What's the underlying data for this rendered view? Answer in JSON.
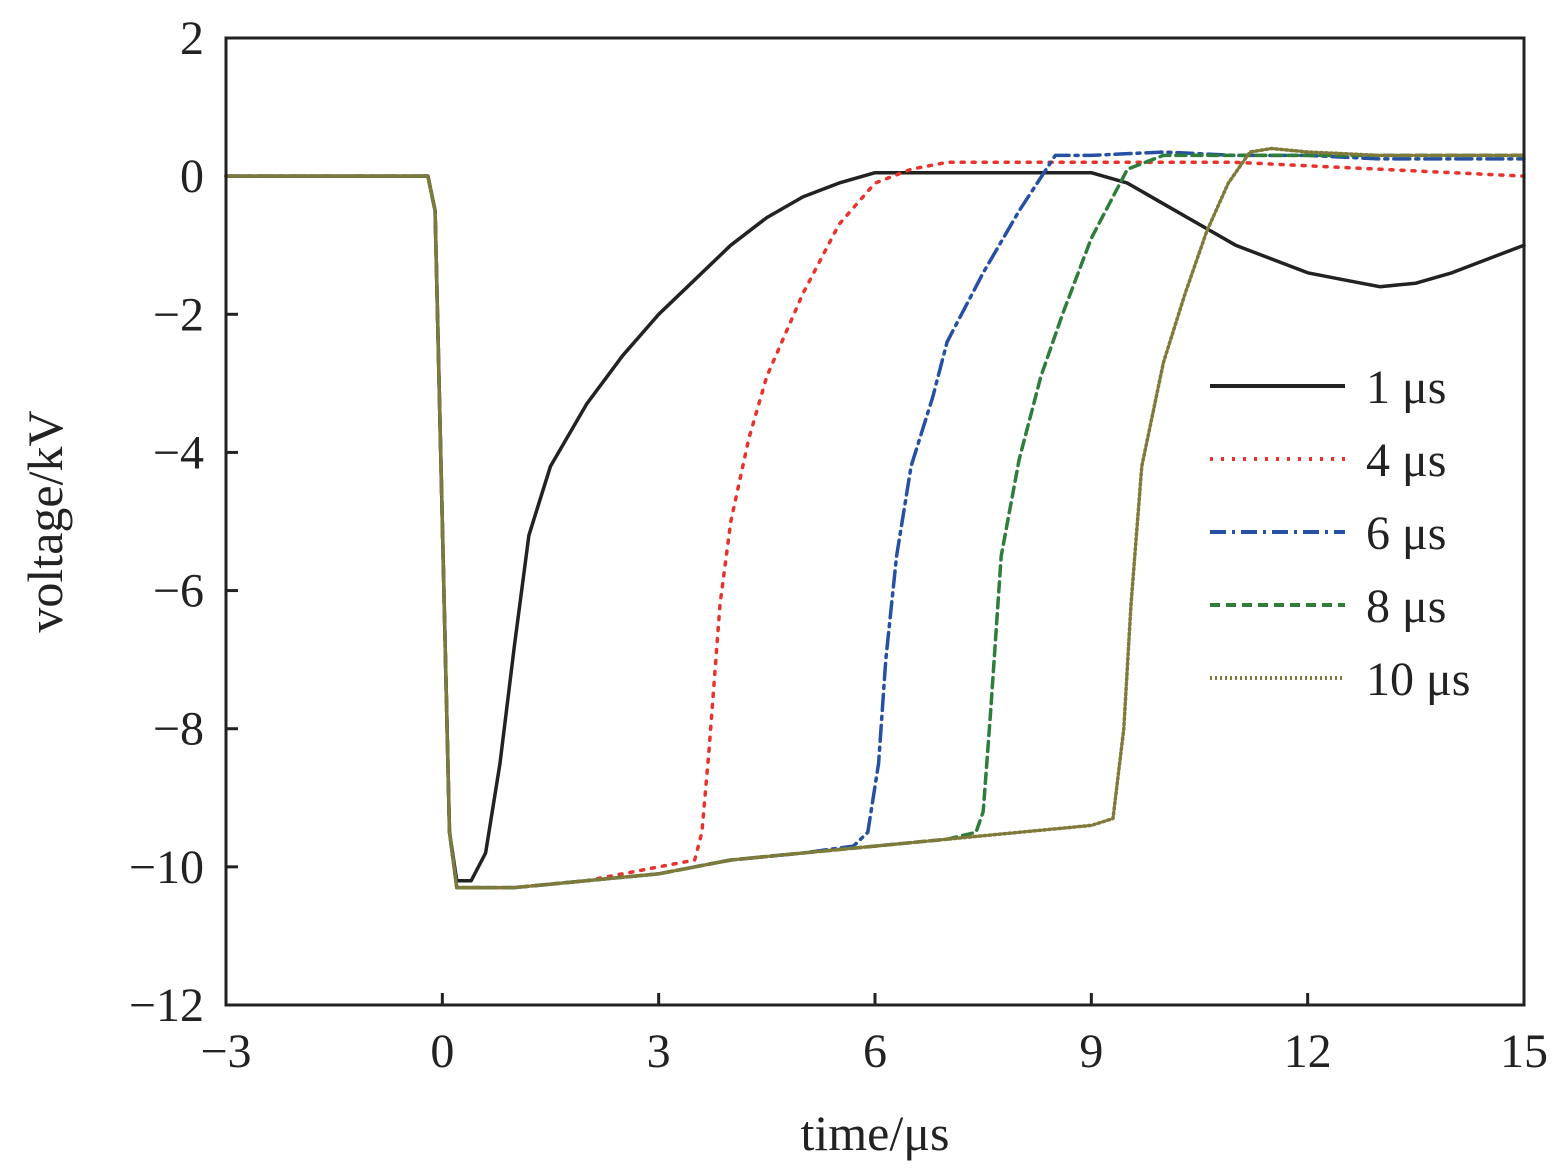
{
  "chart_data": {
    "type": "line",
    "title": "",
    "xlabel": "time/μs",
    "ylabel": "voltage/kV",
    "xlim": [
      -3,
      15
    ],
    "ylim": [
      -12,
      2
    ],
    "xticks": [
      -3,
      0,
      3,
      6,
      9,
      12,
      15
    ],
    "yticks": [
      2,
      0,
      -2,
      -4,
      -6,
      -8,
      -10,
      -12
    ],
    "xtick_labels": [
      "−3",
      "0",
      "3",
      "6",
      "9",
      "12",
      "15"
    ],
    "ytick_labels": [
      "2",
      "0",
      "−2",
      "−4",
      "−6",
      "−8",
      "−10",
      "−12"
    ],
    "grid": false,
    "legend_position": "right",
    "series": [
      {
        "name": "1 μs",
        "color": "#222222",
        "dash": "solid",
        "x": [
          -3,
          -0.2,
          -0.1,
          0.1,
          0.2,
          0.4,
          0.6,
          0.8,
          1.0,
          1.2,
          1.5,
          2.0,
          2.5,
          3.0,
          3.5,
          4.0,
          4.5,
          5.0,
          5.5,
          6.0,
          7.0,
          8.0,
          9.0,
          9.5,
          10.0,
          10.5,
          11.0,
          11.5,
          12.0,
          12.5,
          13.0,
          13.5,
          14.0,
          14.5,
          15.0
        ],
        "y": [
          0,
          0,
          -0.5,
          -9.5,
          -10.2,
          -10.2,
          -9.8,
          -8.5,
          -6.8,
          -5.2,
          -4.2,
          -3.3,
          -2.6,
          -2.0,
          -1.5,
          -1.0,
          -0.6,
          -0.3,
          -0.1,
          0.05,
          0.05,
          0.05,
          0.05,
          -0.1,
          -0.4,
          -0.7,
          -1.0,
          -1.2,
          -1.4,
          -1.5,
          -1.6,
          -1.55,
          -1.4,
          -1.2,
          -1.0
        ]
      },
      {
        "name": "4 μs",
        "color": "#e8332d",
        "dash": "3,8",
        "x": [
          -3,
          -0.2,
          -0.1,
          0.1,
          0.2,
          0.5,
          1.0,
          2.0,
          3.0,
          3.5,
          3.6,
          3.7,
          3.85,
          4.0,
          4.25,
          4.5,
          5.0,
          5.5,
          6.0,
          6.5,
          7.0,
          8.0,
          9.0,
          10.0,
          11.0,
          12.0,
          13.0,
          14.0,
          15.0
        ],
        "y": [
          0,
          0,
          -0.5,
          -9.5,
          -10.3,
          -10.3,
          -10.3,
          -10.2,
          -10.0,
          -9.9,
          -9.5,
          -8.3,
          -6.2,
          -5.0,
          -3.8,
          -2.9,
          -1.7,
          -0.7,
          -0.1,
          0.1,
          0.2,
          0.2,
          0.2,
          0.2,
          0.2,
          0.15,
          0.1,
          0.05,
          0.0
        ]
      },
      {
        "name": "6 μs",
        "color": "#2650a3",
        "dash": "16,6,3,6",
        "x": [
          -3,
          -0.2,
          -0.1,
          0.1,
          0.2,
          0.5,
          1.0,
          2.0,
          3.0,
          4.0,
          5.0,
          5.7,
          5.9,
          6.05,
          6.15,
          6.3,
          6.5,
          6.8,
          7.0,
          7.5,
          8.0,
          8.5,
          9.0,
          10.0,
          11.0,
          12.0,
          13.0,
          14.0,
          15.0
        ],
        "y": [
          0,
          0,
          -0.5,
          -9.5,
          -10.3,
          -10.3,
          -10.3,
          -10.2,
          -10.1,
          -9.9,
          -9.8,
          -9.7,
          -9.5,
          -8.5,
          -7.0,
          -5.5,
          -4.2,
          -3.2,
          -2.4,
          -1.4,
          -0.5,
          0.3,
          0.3,
          0.35,
          0.3,
          0.3,
          0.25,
          0.25,
          0.25
        ]
      },
      {
        "name": "8 μs",
        "color": "#2f7d3b",
        "dash": "10,6",
        "x": [
          -3,
          -0.2,
          -0.1,
          0.1,
          0.2,
          0.5,
          1.0,
          2.0,
          3.0,
          4.0,
          5.0,
          6.0,
          7.0,
          7.4,
          7.5,
          7.6,
          7.75,
          8.0,
          8.3,
          8.6,
          9.0,
          9.5,
          10.0,
          11.0,
          12.0,
          13.0,
          14.0,
          15.0
        ],
        "y": [
          0,
          0,
          -0.5,
          -9.5,
          -10.3,
          -10.3,
          -10.3,
          -10.2,
          -10.1,
          -9.9,
          -9.8,
          -9.7,
          -9.6,
          -9.5,
          -9.2,
          -7.8,
          -5.5,
          -4.1,
          -2.9,
          -2.0,
          -0.9,
          0.1,
          0.3,
          0.3,
          0.3,
          0.3,
          0.3,
          0.3
        ]
      },
      {
        "name": "10 μs",
        "color": "#7f7a3a",
        "dash": "2,3",
        "x": [
          -3,
          -0.2,
          -0.1,
          0.1,
          0.2,
          0.5,
          1.0,
          2.0,
          3.0,
          4.0,
          5.0,
          6.0,
          7.0,
          8.0,
          9.0,
          9.3,
          9.45,
          9.55,
          9.7,
          10.0,
          10.3,
          10.6,
          10.9,
          11.2,
          11.5,
          12.0,
          13.0,
          14.0,
          15.0
        ],
        "y": [
          0,
          0,
          -0.5,
          -9.5,
          -10.3,
          -10.3,
          -10.3,
          -10.2,
          -10.1,
          -9.9,
          -9.8,
          -9.7,
          -9.6,
          -9.5,
          -9.4,
          -9.3,
          -8.0,
          -6.2,
          -4.2,
          -2.7,
          -1.7,
          -0.8,
          -0.1,
          0.35,
          0.4,
          0.35,
          0.3,
          0.3,
          0.3
        ]
      }
    ]
  }
}
